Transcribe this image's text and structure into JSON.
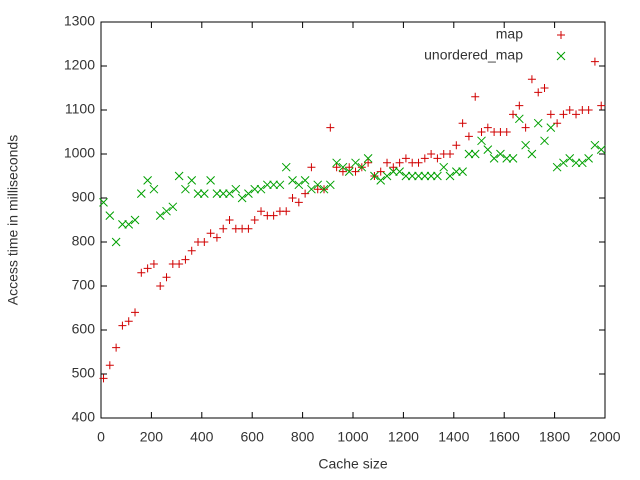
{
  "chart_data": {
    "type": "scatter",
    "x_label": "Cache size",
    "y_label": "Access time in milliseconds",
    "x": [
      10,
      35,
      60,
      85,
      110,
      135,
      160,
      185,
      210,
      235,
      260,
      285,
      310,
      335,
      360,
      385,
      410,
      435,
      460,
      485,
      510,
      535,
      560,
      585,
      610,
      635,
      660,
      685,
      710,
      735,
      760,
      785,
      810,
      835,
      860,
      885,
      910,
      935,
      960,
      985,
      1010,
      1035,
      1060,
      1085,
      1110,
      1135,
      1160,
      1185,
      1210,
      1235,
      1260,
      1285,
      1310,
      1335,
      1360,
      1385,
      1410,
      1435,
      1460,
      1485,
      1510,
      1535,
      1560,
      1585,
      1610,
      1635,
      1660,
      1685,
      1710,
      1735,
      1760,
      1785,
      1810,
      1835,
      1860,
      1885,
      1910,
      1935,
      1960,
      1985
    ],
    "series": [
      {
        "name": "map",
        "color": "#d00000",
        "marker": "plus",
        "values": [
          490,
          520,
          560,
          610,
          620,
          640,
          730,
          740,
          750,
          700,
          720,
          750,
          750,
          760,
          780,
          800,
          800,
          820,
          810,
          830,
          850,
          830,
          830,
          830,
          850,
          870,
          860,
          860,
          870,
          870,
          900,
          890,
          910,
          970,
          920,
          920,
          1060,
          970,
          960,
          970,
          960,
          970,
          980,
          950,
          960,
          980,
          970,
          980,
          990,
          980,
          980,
          990,
          1000,
          990,
          1000,
          1000,
          1020,
          1070,
          1040,
          1130,
          1050,
          1060,
          1050,
          1050,
          1050,
          1090,
          1110,
          1060,
          1170,
          1140,
          1150,
          1090,
          1070,
          1090,
          1100,
          1090,
          1100,
          1100,
          1210,
          1110
        ]
      },
      {
        "name": "unordered_map",
        "color": "#00a000",
        "marker": "cross",
        "values": [
          890,
          860,
          800,
          840,
          840,
          850,
          910,
          940,
          920,
          860,
          870,
          880,
          950,
          920,
          940,
          910,
          910,
          940,
          910,
          910,
          910,
          920,
          900,
          910,
          920,
          920,
          930,
          930,
          930,
          970,
          940,
          930,
          940,
          920,
          930,
          920,
          930,
          980,
          970,
          960,
          980,
          970,
          990,
          950,
          940,
          950,
          960,
          960,
          950,
          950,
          950,
          950,
          950,
          950,
          970,
          950,
          960,
          960,
          1000,
          1000,
          1030,
          1010,
          990,
          1000,
          990,
          990,
          1080,
          1020,
          1000,
          1070,
          1030,
          1060,
          970,
          980,
          990,
          980,
          980,
          990,
          1020,
          1010
        ]
      }
    ],
    "xlim": [
      0,
      2000
    ],
    "xticks": [
      0,
      200,
      400,
      600,
      800,
      1000,
      1200,
      1400,
      1600,
      1800,
      2000
    ],
    "ylim": [
      400,
      1300
    ],
    "yticks": [
      400,
      500,
      600,
      700,
      800,
      900,
      1000,
      1100,
      1200,
      1300
    ],
    "grid": false,
    "legend": "top-right"
  }
}
